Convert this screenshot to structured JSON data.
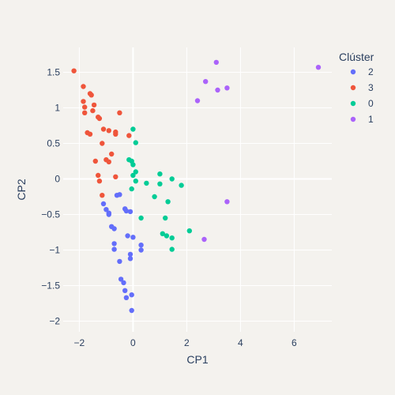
{
  "chart_data": {
    "type": "scatter",
    "xlabel": "CP1",
    "ylabel": "CP2",
    "xlim": [
      -2.6,
      7.4
    ],
    "ylim": [
      -2.15,
      1.85
    ],
    "x_ticks": [
      -2,
      0,
      2,
      4,
      6
    ],
    "y_ticks": [
      -2,
      -1.5,
      -1,
      -0.5,
      0,
      0.5,
      1,
      1.5
    ],
    "x_tick_labels": [
      "−2",
      "0",
      "2",
      "4",
      "6"
    ],
    "y_tick_labels": [
      "−2",
      "−1.5",
      "−1",
      "−0.5",
      "0",
      "0.5",
      "1",
      "1.5"
    ],
    "grid": true,
    "legend_title": "Clúster",
    "legend_position": "top-right",
    "series": [
      {
        "name": "2",
        "color": "#636efa",
        "points": [
          [
            -1.1,
            -0.35
          ],
          [
            -1.0,
            -0.43
          ],
          [
            -0.9,
            -0.48
          ],
          [
            -0.9,
            -0.5
          ],
          [
            -0.6,
            -0.23
          ],
          [
            -0.5,
            -0.22
          ],
          [
            -0.3,
            -0.42
          ],
          [
            -0.25,
            -0.45
          ],
          [
            -0.1,
            -0.46
          ],
          [
            -0.8,
            -0.67
          ],
          [
            -0.7,
            -0.7
          ],
          [
            -0.2,
            -0.8
          ],
          [
            0.0,
            -0.82
          ],
          [
            -0.7,
            -0.91
          ],
          [
            -0.7,
            -0.99
          ],
          [
            0.3,
            -0.93
          ],
          [
            0.3,
            -1.0
          ],
          [
            -0.5,
            -1.16
          ],
          [
            -0.1,
            -1.06
          ],
          [
            -0.1,
            -1.12
          ],
          [
            -0.45,
            -1.41
          ],
          [
            -0.35,
            -1.46
          ],
          [
            -0.3,
            -1.57
          ],
          [
            -0.25,
            -1.67
          ],
          [
            -0.05,
            -1.63
          ],
          [
            -0.05,
            -1.85
          ]
        ]
      },
      {
        "name": "3",
        "color": "#ef553b",
        "points": [
          [
            -2.2,
            1.52
          ],
          [
            -1.85,
            1.3
          ],
          [
            -1.6,
            1.2
          ],
          [
            -1.55,
            1.18
          ],
          [
            -1.85,
            1.09
          ],
          [
            -1.45,
            1.04
          ],
          [
            -1.8,
            1.01
          ],
          [
            -1.5,
            0.96
          ],
          [
            -1.8,
            0.93
          ],
          [
            -1.3,
            0.87
          ],
          [
            -1.25,
            0.85
          ],
          [
            -0.5,
            0.93
          ],
          [
            -1.7,
            0.65
          ],
          [
            -1.6,
            0.63
          ],
          [
            -1.1,
            0.7
          ],
          [
            -0.9,
            0.68
          ],
          [
            -0.65,
            0.66
          ],
          [
            -0.65,
            0.63
          ],
          [
            -0.15,
            0.61
          ],
          [
            -1.15,
            0.5
          ],
          [
            -0.8,
            0.35
          ],
          [
            -1.4,
            0.25
          ],
          [
            -1.0,
            0.27
          ],
          [
            -0.9,
            0.24
          ],
          [
            -1.3,
            0.05
          ],
          [
            -0.65,
            0.03
          ],
          [
            -1.25,
            -0.03
          ],
          [
            -1.15,
            -0.23
          ]
        ]
      },
      {
        "name": "0",
        "color": "#00cc96",
        "points": [
          [
            0.0,
            0.7
          ],
          [
            0.1,
            0.51
          ],
          [
            -0.15,
            0.27
          ],
          [
            -0.05,
            0.25
          ],
          [
            0.0,
            0.2
          ],
          [
            0.1,
            0.1
          ],
          [
            0.0,
            0.05
          ],
          [
            0.1,
            -0.03
          ],
          [
            0.5,
            -0.06
          ],
          [
            -0.05,
            -0.14
          ],
          [
            1.0,
            0.07
          ],
          [
            1.45,
            0.0
          ],
          [
            1.0,
            -0.07
          ],
          [
            1.8,
            -0.09
          ],
          [
            0.8,
            -0.25
          ],
          [
            1.3,
            -0.32
          ],
          [
            0.3,
            -0.55
          ],
          [
            1.2,
            -0.55
          ],
          [
            2.1,
            -0.73
          ],
          [
            1.1,
            -0.77
          ],
          [
            1.25,
            -0.8
          ],
          [
            1.45,
            -0.83
          ],
          [
            1.45,
            -0.99
          ]
        ]
      },
      {
        "name": "1",
        "color": "#ab63fa",
        "points": [
          [
            3.1,
            1.64
          ],
          [
            6.9,
            1.57
          ],
          [
            2.7,
            1.37
          ],
          [
            3.5,
            1.28
          ],
          [
            3.15,
            1.25
          ],
          [
            2.4,
            1.1
          ],
          [
            3.5,
            -0.32
          ],
          [
            2.65,
            -0.85
          ]
        ]
      }
    ]
  }
}
